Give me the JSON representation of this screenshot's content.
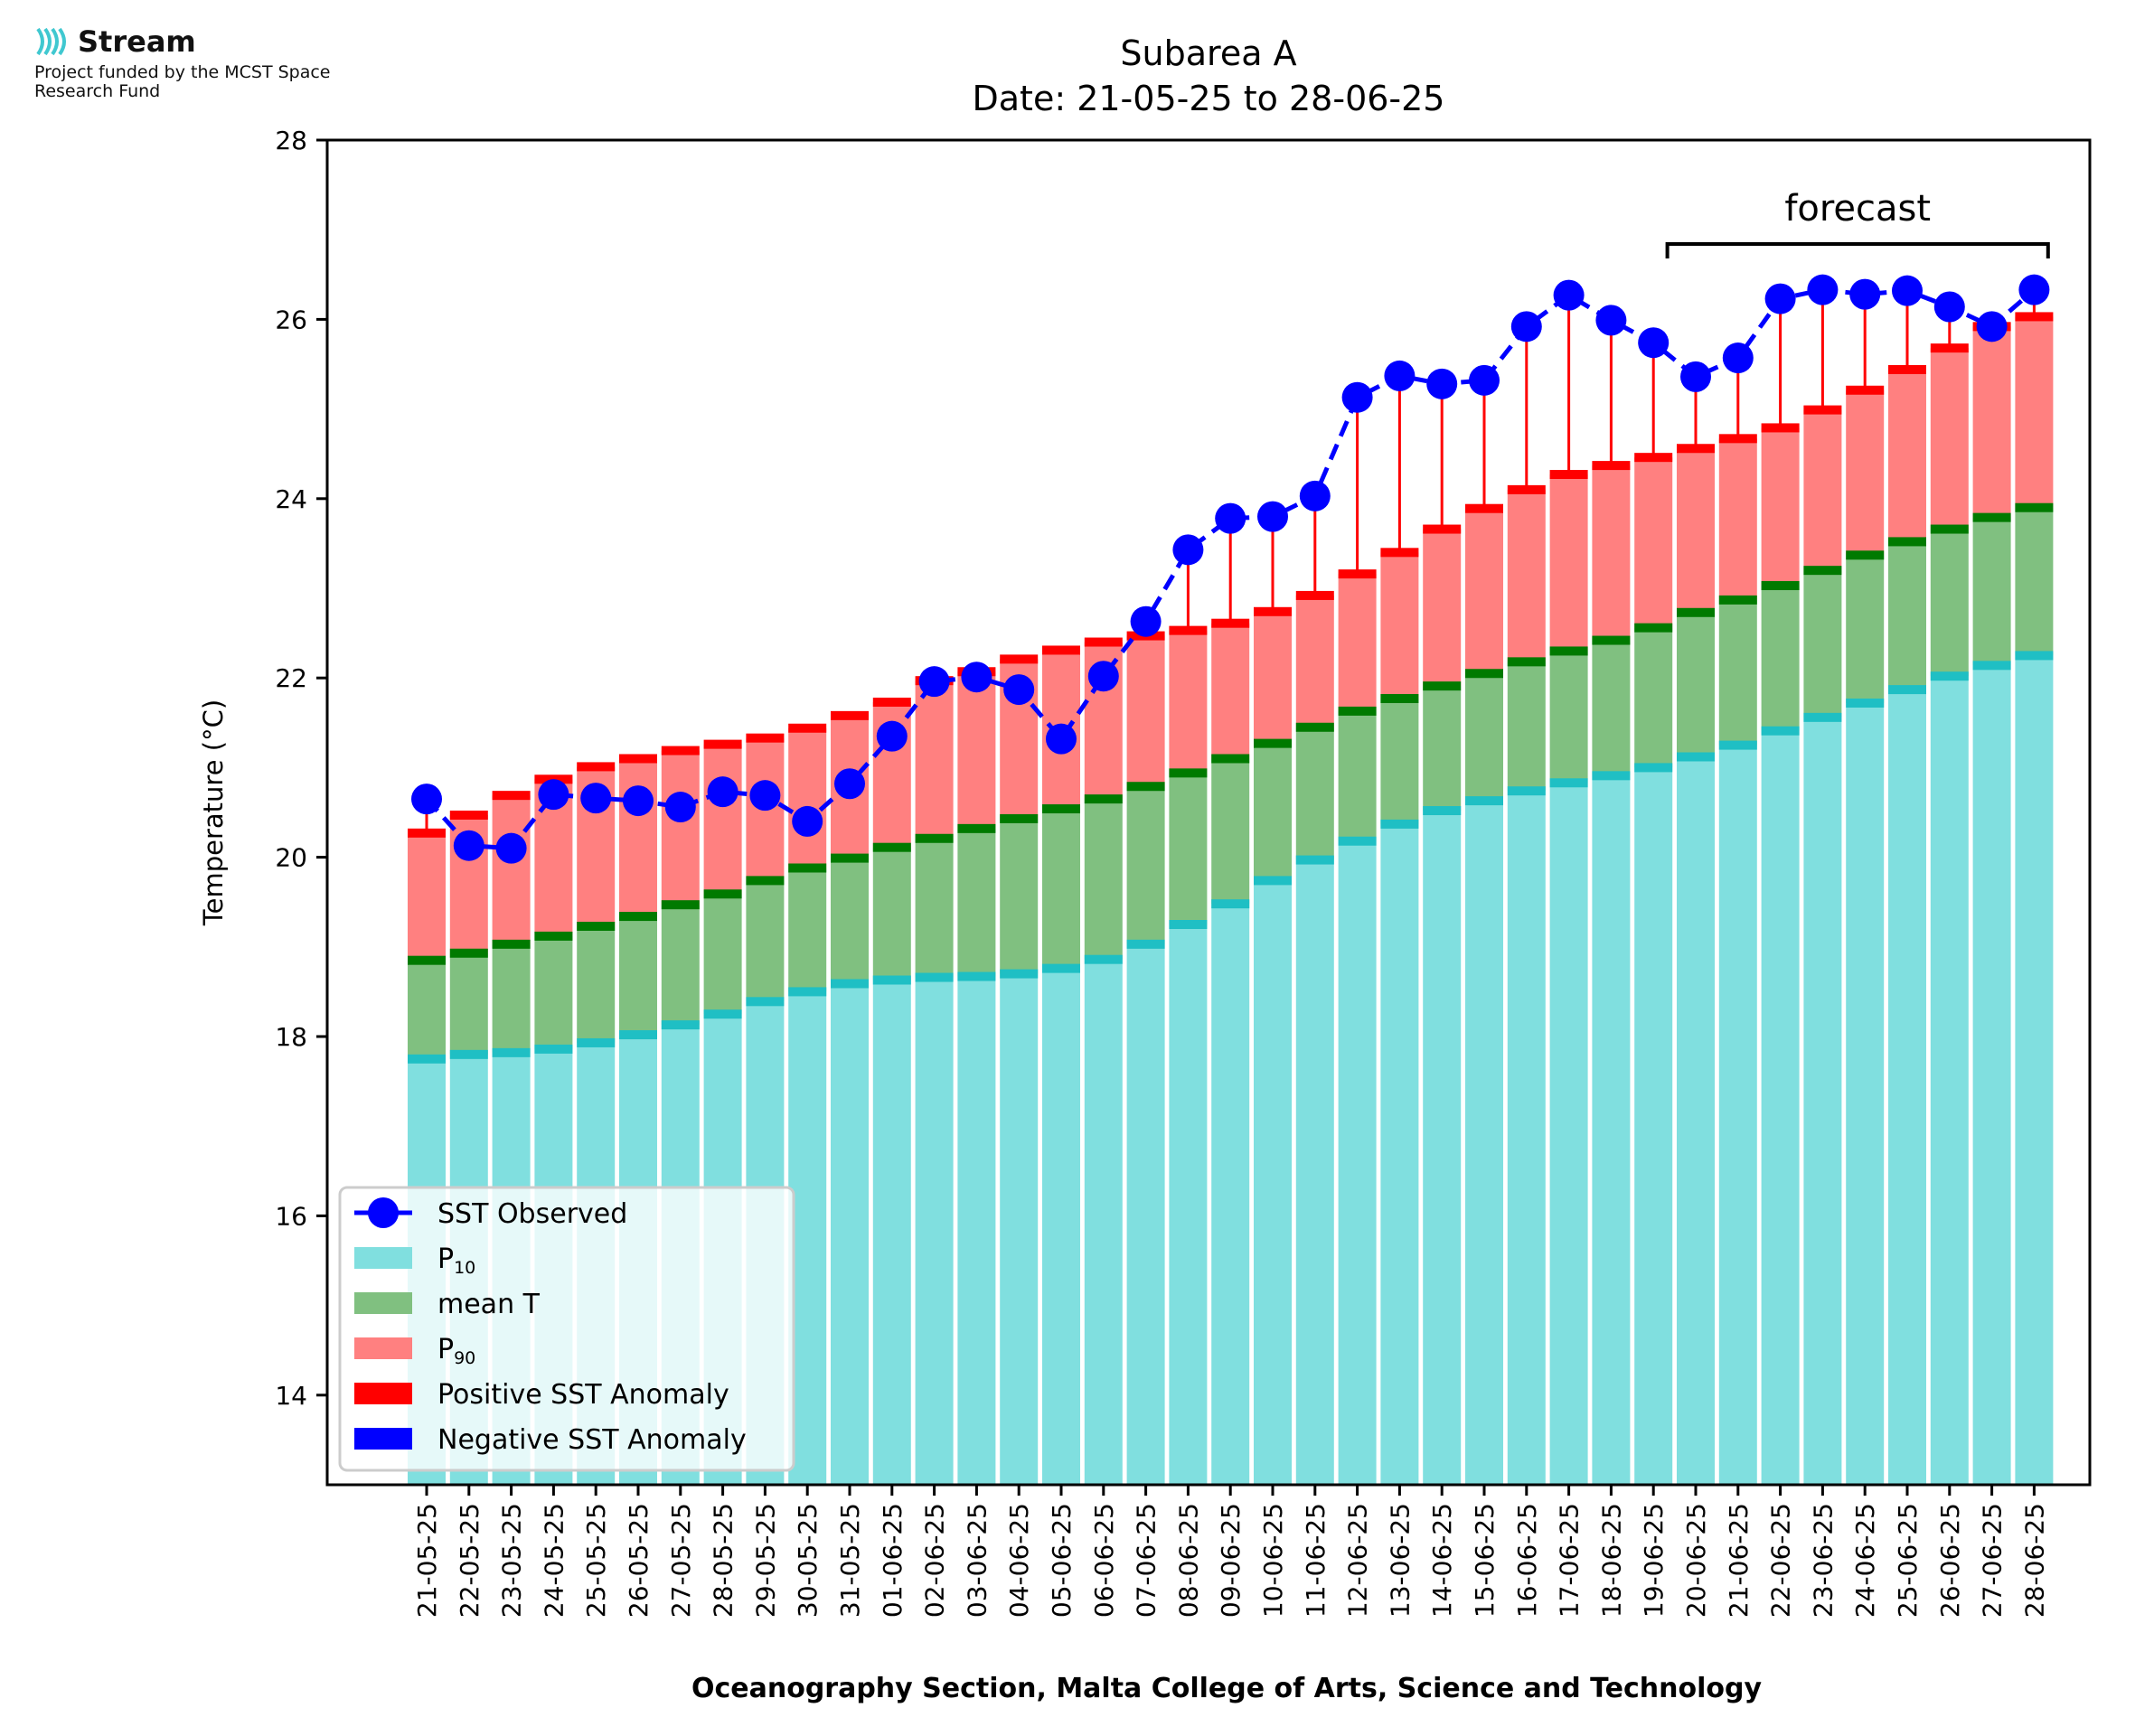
{
  "logo": {
    "name": "Stream",
    "funding_text": "Project funded by the MCST Space Research Fund"
  },
  "chart_data": {
    "type": "bar",
    "title": "Subarea A",
    "subtitle": "Date: 21-05-25 to 28-06-25",
    "xlabel": "Oceanography Section, Malta College of Arts, Science and Technology",
    "ylabel": "Temperature (°C)",
    "ylim": [
      13,
      28
    ],
    "yticks": [
      14,
      16,
      18,
      20,
      22,
      24,
      26,
      28
    ],
    "categories": [
      "21-05-25",
      "22-05-25",
      "23-05-25",
      "24-05-25",
      "25-05-25",
      "26-05-25",
      "27-05-25",
      "28-05-25",
      "29-05-25",
      "30-05-25",
      "31-05-25",
      "01-06-25",
      "02-06-25",
      "03-06-25",
      "04-06-25",
      "05-06-25",
      "06-06-25",
      "07-06-25",
      "08-06-25",
      "09-06-25",
      "10-06-25",
      "11-06-25",
      "12-06-25",
      "13-06-25",
      "14-06-25",
      "15-06-25",
      "16-06-25",
      "17-06-25",
      "18-06-25",
      "19-06-25",
      "20-06-25",
      "21-06-25",
      "22-06-25",
      "23-06-25",
      "24-06-25",
      "25-06-25",
      "26-06-25",
      "27-06-25",
      "28-06-25"
    ],
    "series": [
      {
        "name": "SST Observed",
        "kind": "line",
        "color": "#0000ff",
        "values": [
          20.65,
          20.13,
          20.1,
          20.7,
          20.66,
          20.63,
          20.56,
          20.73,
          20.69,
          20.4,
          20.82,
          21.35,
          21.96,
          22.01,
          21.87,
          21.32,
          22.02,
          22.63,
          23.43,
          23.78,
          23.8,
          24.03,
          25.13,
          25.37,
          25.28,
          25.32,
          25.92,
          26.27,
          25.99,
          25.74,
          25.36,
          25.57,
          26.23,
          26.33,
          26.28,
          26.32,
          26.14,
          25.92,
          26.33
        ]
      },
      {
        "name": "P10",
        "kind": "bar",
        "color": "#80dfdf",
        "values": [
          17.75,
          17.8,
          17.82,
          17.86,
          17.93,
          18.02,
          18.13,
          18.25,
          18.39,
          18.5,
          18.59,
          18.63,
          18.66,
          18.67,
          18.7,
          18.76,
          18.86,
          19.03,
          19.25,
          19.48,
          19.74,
          19.97,
          20.18,
          20.37,
          20.52,
          20.63,
          20.74,
          20.83,
          20.91,
          21.0,
          21.12,
          21.25,
          21.41,
          21.56,
          21.72,
          21.87,
          22.02,
          22.14,
          22.25
        ]
      },
      {
        "name": "mean T",
        "kind": "bar",
        "color": "#80c080",
        "values": [
          18.85,
          18.93,
          19.03,
          19.12,
          19.23,
          19.34,
          19.47,
          19.59,
          19.74,
          19.88,
          19.99,
          20.11,
          20.21,
          20.32,
          20.43,
          20.54,
          20.65,
          20.79,
          20.94,
          21.1,
          21.27,
          21.45,
          21.63,
          21.77,
          21.91,
          22.05,
          22.18,
          22.3,
          22.42,
          22.56,
          22.73,
          22.87,
          23.03,
          23.2,
          23.37,
          23.52,
          23.66,
          23.79,
          23.9
        ]
      },
      {
        "name": "P90",
        "kind": "bar",
        "color": "#ff8080",
        "values": [
          20.27,
          20.47,
          20.69,
          20.87,
          21.01,
          21.1,
          21.19,
          21.26,
          21.33,
          21.44,
          21.58,
          21.73,
          21.97,
          22.07,
          22.21,
          22.31,
          22.4,
          22.47,
          22.53,
          22.61,
          22.74,
          22.92,
          23.16,
          23.4,
          23.66,
          23.89,
          24.1,
          24.27,
          24.37,
          24.46,
          24.56,
          24.67,
          24.79,
          24.99,
          25.21,
          25.44,
          25.68,
          25.92,
          26.03
        ]
      },
      {
        "name": "Positive SST Anomaly",
        "kind": "errorbar",
        "color": "#ff0000"
      },
      {
        "name": "Negative SST Anomaly",
        "kind": "errorbar",
        "color": "#0000ff"
      }
    ],
    "forecast": {
      "label": "forecast",
      "from": "20-06-25",
      "to": "28-06-25"
    },
    "legend": {
      "position": "lower-left",
      "entries": [
        {
          "label": "SST Observed",
          "sub": ""
        },
        {
          "label": "P",
          "sub": "10"
        },
        {
          "label": "mean T",
          "sub": ""
        },
        {
          "label": "P",
          "sub": "90"
        },
        {
          "label": "Positive SST Anomaly",
          "sub": ""
        },
        {
          "label": "Negative SST Anomaly",
          "sub": ""
        }
      ]
    },
    "colors": {
      "p10_cap": "#1fbfc4",
      "mean_cap": "#007a00",
      "p90_cap": "#ff0000"
    }
  }
}
